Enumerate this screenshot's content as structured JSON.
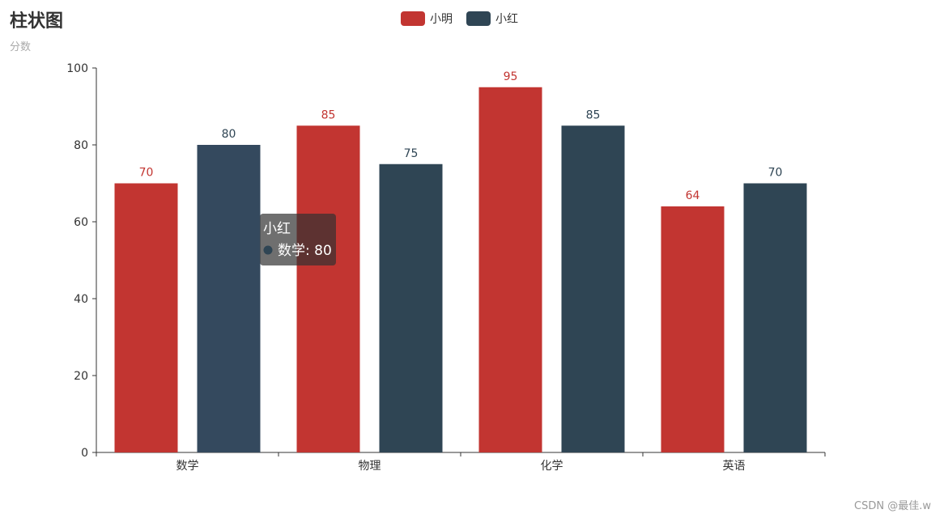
{
  "chart_data": {
    "type": "bar",
    "title": "柱状图",
    "subtitle": "分数",
    "categories": [
      "数学",
      "物理",
      "化学",
      "英语"
    ],
    "series": [
      {
        "name": "小明",
        "values": [
          70,
          85,
          95,
          64
        ],
        "color": "#c23531"
      },
      {
        "name": "小红",
        "values": [
          80,
          75,
          85,
          70
        ],
        "color": "#2f4554"
      }
    ],
    "ylim": [
      0,
      100
    ],
    "yticks": [
      0,
      20,
      40,
      60,
      80,
      100
    ],
    "legend_position": "top-center",
    "grid": false
  },
  "tooltip": {
    "series_name": "小红",
    "text": "数学: 80",
    "marker_color": "#2f4554"
  },
  "highlight_color": "#34495e",
  "watermark": "CSDN @最佳.w"
}
